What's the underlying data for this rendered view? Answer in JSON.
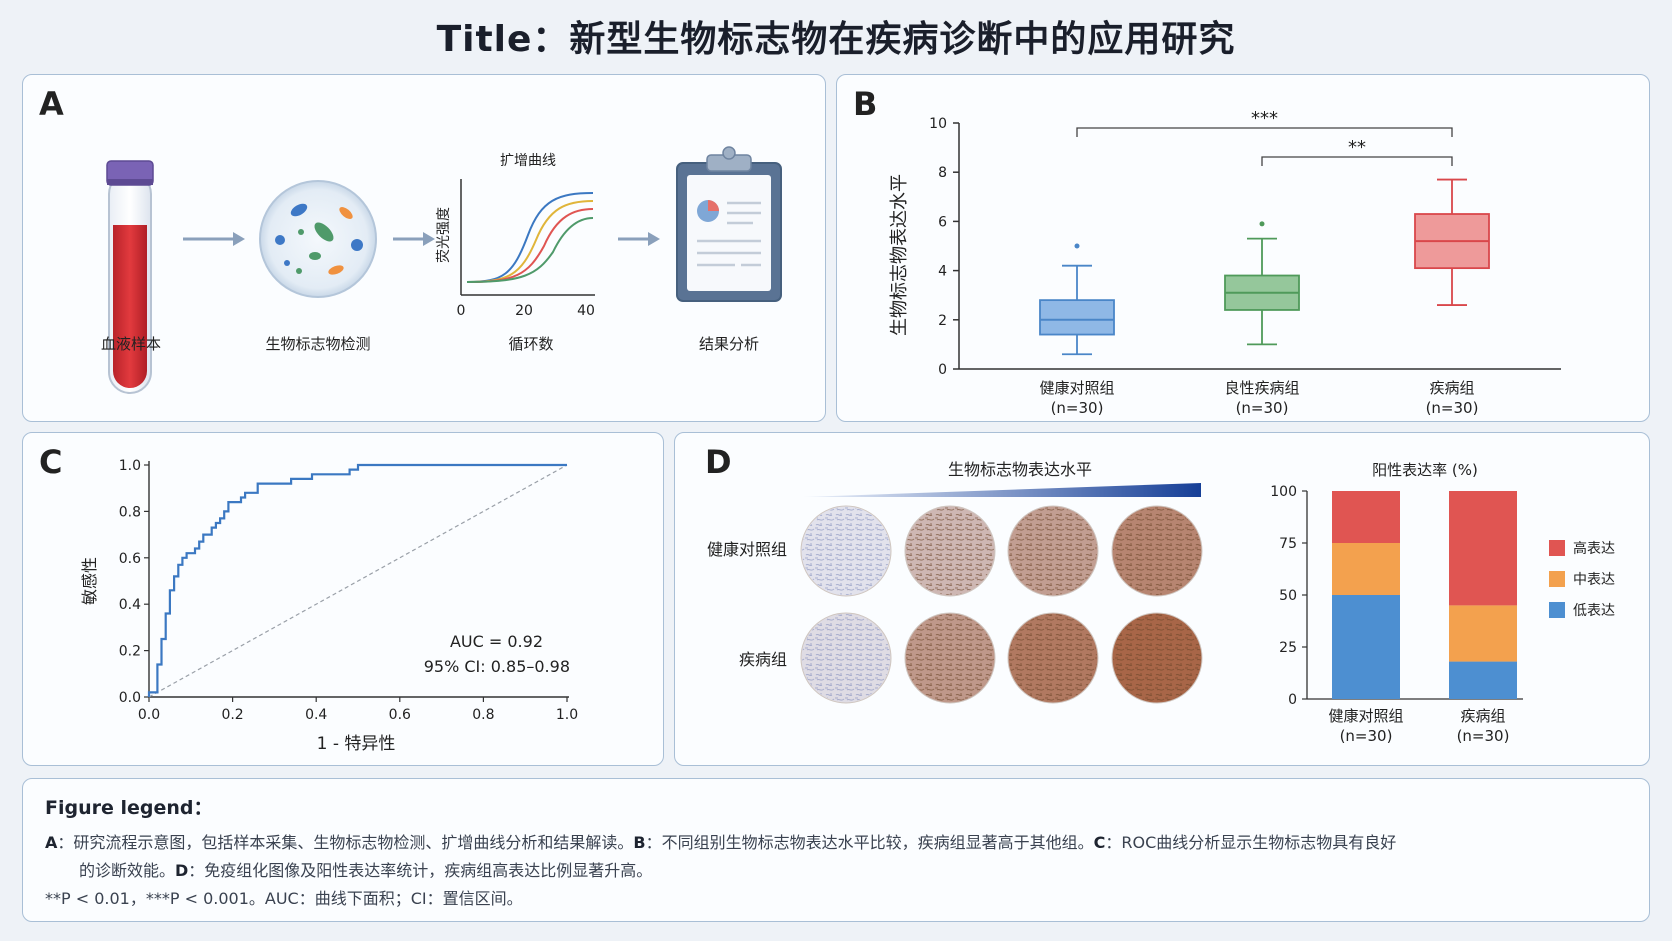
{
  "title": "Title：新型生物标志物在疾病诊断中的应用研究",
  "panel_a": {
    "label": "A",
    "steps": [
      "血液样本",
      "生物标志物检测",
      "循环数",
      "结果分析"
    ],
    "curve_title": "扩增曲线",
    "curve_ylabel": "荧光强度",
    "curve_xticks": [
      "0",
      "20",
      "40"
    ],
    "colors": {
      "blood": "#cf2e33",
      "cap": "#7a63b5",
      "arrow": "#8aa0bb"
    }
  },
  "panel_b": {
    "label": "B",
    "ylabel": "生物标志物表达水平",
    "sig": [
      "***",
      "**"
    ],
    "chart_data": {
      "type": "box",
      "ylabel": "生物标志物表达水平",
      "ylim": [
        0,
        10
      ],
      "yticks": [
        0,
        2,
        4,
        6,
        8,
        10
      ],
      "groups": [
        {
          "name": "健康对照组",
          "n": "(n=30)",
          "min": 0.6,
          "q1": 1.4,
          "median": 2.0,
          "q3": 2.8,
          "max": 4.2,
          "outliers": [
            5.0
          ],
          "color": "#4a86c8",
          "fill": "#8fb8e6"
        },
        {
          "name": "良性疾病组",
          "n": "(n=30)",
          "min": 1.0,
          "q1": 2.4,
          "median": 3.1,
          "q3": 3.8,
          "max": 5.3,
          "outliers": [
            5.9
          ],
          "color": "#4f9a5a",
          "fill": "#95c79b"
        },
        {
          "name": "疾病组",
          "n": "(n=30)",
          "min": 2.6,
          "q1": 4.1,
          "median": 5.2,
          "q3": 6.3,
          "max": 7.7,
          "outliers": [],
          "color": "#d9474b",
          "fill": "#ee9a9a"
        }
      ],
      "significance": [
        {
          "from": "健康对照组",
          "to": "疾病组",
          "label": "***"
        },
        {
          "from": "良性疾病组",
          "to": "疾病组",
          "label": "**"
        }
      ]
    }
  },
  "panel_c": {
    "label": "C",
    "chart_data": {
      "type": "line",
      "xlabel": "1 - 特异性",
      "ylabel": "敏感性",
      "xlim": [
        0,
        1
      ],
      "ylim": [
        0,
        1
      ],
      "xticks": [
        "0.0",
        "0.2",
        "0.4",
        "0.6",
        "0.8",
        "1.0"
      ],
      "yticks": [
        "0.0",
        "0.2",
        "0.4",
        "0.6",
        "0.8",
        "1.0"
      ],
      "roc": [
        [
          0,
          0
        ],
        [
          0,
          0.02
        ],
        [
          0.02,
          0.02
        ],
        [
          0.02,
          0.14
        ],
        [
          0.03,
          0.14
        ],
        [
          0.03,
          0.25
        ],
        [
          0.04,
          0.25
        ],
        [
          0.04,
          0.36
        ],
        [
          0.05,
          0.36
        ],
        [
          0.05,
          0.46
        ],
        [
          0.06,
          0.46
        ],
        [
          0.06,
          0.52
        ],
        [
          0.07,
          0.52
        ],
        [
          0.07,
          0.57
        ],
        [
          0.08,
          0.57
        ],
        [
          0.08,
          0.6
        ],
        [
          0.09,
          0.6
        ],
        [
          0.09,
          0.62
        ],
        [
          0.11,
          0.62
        ],
        [
          0.11,
          0.64
        ],
        [
          0.12,
          0.64
        ],
        [
          0.12,
          0.67
        ],
        [
          0.13,
          0.67
        ],
        [
          0.13,
          0.7
        ],
        [
          0.15,
          0.7
        ],
        [
          0.15,
          0.73
        ],
        [
          0.16,
          0.73
        ],
        [
          0.16,
          0.75
        ],
        [
          0.17,
          0.75
        ],
        [
          0.17,
          0.77
        ],
        [
          0.18,
          0.77
        ],
        [
          0.18,
          0.8
        ],
        [
          0.19,
          0.8
        ],
        [
          0.19,
          0.84
        ],
        [
          0.22,
          0.84
        ],
        [
          0.22,
          0.86
        ],
        [
          0.23,
          0.86
        ],
        [
          0.23,
          0.88
        ],
        [
          0.26,
          0.88
        ],
        [
          0.26,
          0.92
        ],
        [
          0.34,
          0.92
        ],
        [
          0.34,
          0.94
        ],
        [
          0.39,
          0.94
        ],
        [
          0.39,
          0.96
        ],
        [
          0.48,
          0.96
        ],
        [
          0.48,
          0.98
        ],
        [
          0.5,
          0.98
        ],
        [
          0.5,
          1.0
        ],
        [
          1.0,
          1.0
        ]
      ],
      "reference_line": [
        [
          0,
          0
        ],
        [
          1,
          1
        ]
      ],
      "color": "#3b78c2",
      "auc": "AUC = 0.92",
      "ci": "95% CI: 0.85–0.98"
    }
  },
  "panel_d": {
    "label": "D",
    "gradient_title": "生物标志物表达水平",
    "rows": [
      "健康对照组",
      "疾病组"
    ],
    "ihc_intensity": [
      [
        0.0,
        0.35,
        0.55,
        0.75
      ],
      [
        0.05,
        0.6,
        0.85,
        1.0
      ]
    ],
    "chart_data": {
      "type": "bar",
      "title": "阳性表达率 (%)",
      "stacked": true,
      "categories": [
        "健康对照组",
        "疾病组"
      ],
      "category_n": [
        "(n=30)",
        "(n=30)"
      ],
      "ylim": [
        0,
        100
      ],
      "yticks": [
        0,
        25,
        50,
        75,
        100
      ],
      "series": [
        {
          "name": "低表达",
          "values": [
            50,
            18
          ],
          "color": "#4d8fd1"
        },
        {
          "name": "中表达",
          "values": [
            25,
            27
          ],
          "color": "#f3a14e"
        },
        {
          "name": "高表达",
          "values": [
            25,
            55
          ],
          "color": "#e05552"
        }
      ],
      "legend_order": [
        "高表达",
        "中表达",
        "低表达"
      ],
      "legend_position": "right"
    }
  },
  "legend": {
    "title": "Figure legend：",
    "line1_a": "A",
    "line1_a_text": "：研究流程示意图，包括样本采集、生物标志物检测、扩增曲线分析和结果解读。",
    "line1_b": "B",
    "line1_b_text": "：不同组别生物标志物表达水平比较，疾病组显著高于其他组。",
    "line1_c": "C",
    "line1_c_text": "：ROC曲线分析显示生物标志物具有良好",
    "line2_text": "的诊断效能。",
    "line2_d": "D",
    "line2_d_text": "：免疫组化图像及阳性表达率统计，疾病组高表达比例显著升高。",
    "line3": "**P < 0.01，***P < 0.001。AUC：曲线下面积；CI：置信区间。"
  }
}
